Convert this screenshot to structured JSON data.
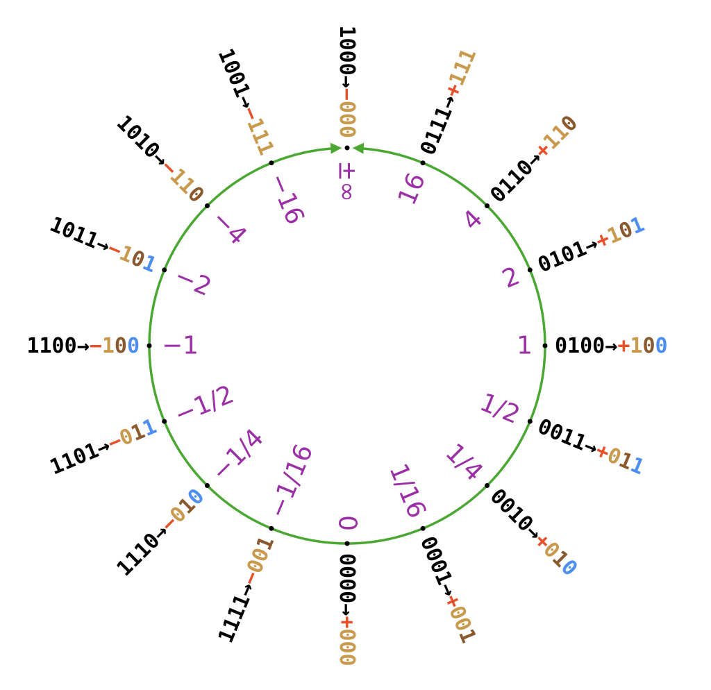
{
  "colors": {
    "ring": "#4aa832",
    "dot": "#000000",
    "bits": "#000000",
    "sign": "#e8502a",
    "regime": "#c99a4e",
    "terminator": "#8a5a2e",
    "exponent": "#4d8ef0",
    "value": "#9a2fa6"
  },
  "arrow": "→",
  "points": [
    {
      "bits": "1000",
      "sign": "−",
      "regime": "000",
      "terminator": "",
      "exponent": "",
      "value": "±∞"
    },
    {
      "bits": "0111",
      "sign": "+",
      "regime": "111",
      "terminator": "",
      "exponent": "",
      "value": "16"
    },
    {
      "bits": "0110",
      "sign": "+",
      "regime": "11",
      "terminator": "0",
      "exponent": "",
      "value": "4"
    },
    {
      "bits": "0101",
      "sign": "+",
      "regime": "1",
      "terminator": "0",
      "exponent": "1",
      "value": "2"
    },
    {
      "bits": "0100",
      "sign": "+",
      "regime": "1",
      "terminator": "0",
      "exponent": "0",
      "value": "1"
    },
    {
      "bits": "0011",
      "sign": "+",
      "regime": "0",
      "terminator": "1",
      "exponent": "1",
      "value": "1/2"
    },
    {
      "bits": "0010",
      "sign": "+",
      "regime": "0",
      "terminator": "1",
      "exponent": "0",
      "value": "1/4"
    },
    {
      "bits": "0001",
      "sign": "+",
      "regime": "00",
      "terminator": "1",
      "exponent": "",
      "value": "1/16"
    },
    {
      "bits": "0000",
      "sign": "+",
      "regime": "000",
      "terminator": "",
      "exponent": "",
      "value": "0"
    },
    {
      "bits": "1111",
      "sign": "−",
      "regime": "00",
      "terminator": "1",
      "exponent": "",
      "value": "−1/16"
    },
    {
      "bits": "1110",
      "sign": "−",
      "regime": "0",
      "terminator": "1",
      "exponent": "0",
      "value": "−1/4"
    },
    {
      "bits": "1101",
      "sign": "−",
      "regime": "0",
      "terminator": "1",
      "exponent": "1",
      "value": "−1/2"
    },
    {
      "bits": "1100",
      "sign": "−",
      "regime": "1",
      "terminator": "0",
      "exponent": "0",
      "value": "−1"
    },
    {
      "bits": "1011",
      "sign": "−",
      "regime": "1",
      "terminator": "0",
      "exponent": "1",
      "value": "−2"
    },
    {
      "bits": "1010",
      "sign": "−",
      "regime": "11",
      "terminator": "0",
      "exponent": "",
      "value": "−4"
    },
    {
      "bits": "1001",
      "sign": "−",
      "regime": "111",
      "terminator": "",
      "exponent": "",
      "value": "−16"
    }
  ]
}
